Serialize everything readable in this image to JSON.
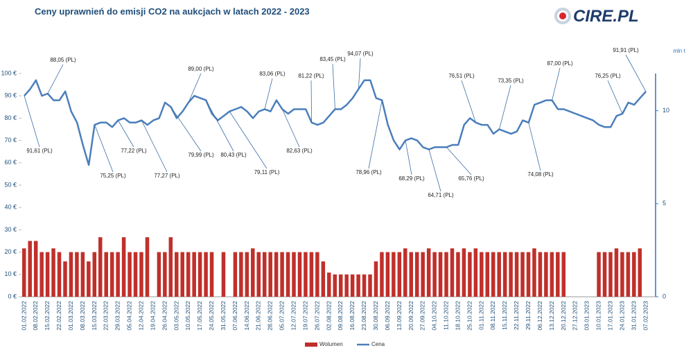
{
  "chart_data": {
    "type": "bar",
    "title": "Ceny uprawnień do emisji CO2 na aukcjach w latach 2022 - 2023",
    "logo": "CIRE.PL",
    "y2label": "mln t",
    "categories": [
      "01.02.2022",
      null,
      "08.02.2022",
      null,
      "15.02.2022",
      null,
      "22.02.2022",
      null,
      "01.03.2022",
      null,
      "08.03.2022",
      null,
      "15.03.2022",
      null,
      "22.03.2022",
      null,
      "29.03.2022",
      null,
      "05.04.2022",
      null,
      "12.04.2022",
      null,
      "19.04.2022",
      null,
      "26.04.2022",
      null,
      "03.05.2022",
      null,
      "10.05.2022",
      null,
      "17.05.2022",
      null,
      "24.05.2022",
      null,
      "31.05.2022",
      null,
      "07.06.2022",
      null,
      "14.06.2022",
      null,
      "21.06.2022",
      null,
      "28.06.2022",
      null,
      "05.07.2022",
      null,
      "12.07.2022",
      null,
      "19.07.2022",
      null,
      "26.07.2022",
      null,
      "02.08.2022",
      null,
      "09.08.2022",
      null,
      "16.08.2022",
      null,
      "23.08.2022",
      null,
      "30.08.2022",
      null,
      "06.09.2022",
      null,
      "13.09.2022",
      null,
      "20.09.2022",
      null,
      "27.09.2022",
      null,
      "04.10.2022",
      null,
      "11.10.2022",
      null,
      "18.10.2022",
      null,
      "25.10.2022",
      null,
      "01.11.2022",
      null,
      "08.11.2022",
      null,
      "15.11.2022",
      null,
      "22.11.2022",
      null,
      "29.11.2022",
      null,
      "06.12.2022",
      null,
      "13.12.2022",
      null,
      "20.12.2022",
      null,
      "27.12.2022",
      null,
      "03.01.2023",
      null,
      "10.01.2023",
      null,
      "17.01.2023",
      null,
      "24.01.2023",
      null,
      "31.01.2023",
      null,
      "07.02.2023"
    ],
    "series": [
      {
        "name": "Wolumen",
        "type": "bar",
        "axis": "y2",
        "color": "#c0302b",
        "values": [
          2.6,
          3.0,
          3.0,
          2.4,
          2.4,
          2.6,
          2.4,
          1.9,
          2.4,
          2.4,
          2.4,
          1.9,
          2.4,
          3.2,
          2.4,
          2.4,
          2.4,
          3.2,
          2.4,
          2.4,
          2.4,
          3.2,
          null,
          2.4,
          2.4,
          3.2,
          2.4,
          2.4,
          2.4,
          2.4,
          2.4,
          2.4,
          2.4,
          null,
          2.4,
          null,
          2.4,
          2.4,
          2.4,
          2.6,
          2.4,
          2.4,
          2.4,
          2.4,
          2.4,
          2.4,
          2.4,
          2.4,
          2.4,
          2.4,
          2.4,
          1.9,
          1.3,
          1.2,
          1.2,
          1.2,
          1.2,
          1.2,
          1.2,
          1.2,
          1.9,
          2.4,
          2.4,
          2.4,
          2.4,
          2.6,
          2.4,
          2.4,
          2.4,
          2.6,
          2.4,
          2.4,
          2.4,
          2.6,
          2.4,
          2.6,
          2.4,
          2.6,
          2.4,
          2.4,
          2.4,
          2.4,
          2.4,
          2.4,
          2.4,
          2.4,
          2.4,
          2.6,
          2.4,
          2.4,
          2.4,
          2.4,
          2.4,
          null,
          null,
          null,
          null,
          null,
          2.4,
          2.4,
          2.4,
          2.6,
          2.4,
          2.4,
          2.4,
          2.6,
          null
        ]
      },
      {
        "name": "Cena",
        "type": "line",
        "color": "#4a7ebb",
        "values": [
          90,
          93,
          97,
          90,
          91,
          88,
          88,
          92,
          83,
          78,
          68,
          59,
          77,
          78,
          78,
          76,
          79,
          80,
          78,
          78,
          79,
          77,
          79,
          80,
          87,
          85,
          80,
          83,
          87,
          90,
          89,
          88,
          82,
          79,
          81,
          83,
          84,
          85,
          83,
          80,
          83,
          84,
          83,
          88,
          84,
          82,
          84,
          84,
          84,
          78,
          77,
          78,
          81,
          84,
          84,
          86,
          89,
          93,
          97,
          97,
          89,
          88,
          77,
          70,
          66,
          70,
          71,
          70,
          67,
          66,
          67,
          67,
          67,
          68,
          68,
          77,
          80,
          78,
          77,
          77,
          73,
          75,
          74,
          73,
          74,
          79,
          78,
          86,
          87,
          88,
          88,
          84,
          84,
          83,
          82,
          81,
          80,
          79,
          77,
          76,
          76,
          81,
          82,
          87,
          86,
          89,
          91.91
        ]
      }
    ],
    "annotations": [
      "91,61 (PL)",
      "88,05 (PL)",
      "75,25 (PL)",
      "77,22 (PL)",
      "77,27 (PL)",
      "79,99 (PL)",
      "89,00 (PL)",
      "80,43 (PL)",
      "79,11 (PL)",
      "83,06 (PL)",
      "82,63 (PL)",
      "81,22 (PL)",
      "83,45 (PL)",
      "94,07 (PL)",
      "78,96 (PL)",
      "68,29 (PL)",
      "64,71 (PL)",
      "65,76 (PL)",
      "76,51 (PL)",
      "73,35 (PL)",
      "74,08 (PL)",
      "87,00 (PL)",
      "76,25 (PL)",
      "91,91 (PL)"
    ],
    "ylim": [
      0,
      100
    ],
    "yticks": [
      {
        "value": 0,
        "label": "0 €"
      },
      {
        "value": 10,
        "label": "10 €"
      },
      {
        "value": 20,
        "label": "20 €"
      },
      {
        "value": 30,
        "label": "30 €"
      },
      {
        "value": 40,
        "label": "40 €"
      },
      {
        "value": 50,
        "label": "50 €"
      },
      {
        "value": 60,
        "label": "60 €"
      },
      {
        "value": 70,
        "label": "70 €"
      },
      {
        "value": 80,
        "label": "80 €"
      },
      {
        "value": 90,
        "label": "90 €"
      },
      {
        "value": 100,
        "label": "100 €"
      }
    ],
    "y2lim": [
      0,
      12
    ],
    "y2ticks": [
      0,
      5,
      10
    ],
    "legend": "bottom"
  }
}
